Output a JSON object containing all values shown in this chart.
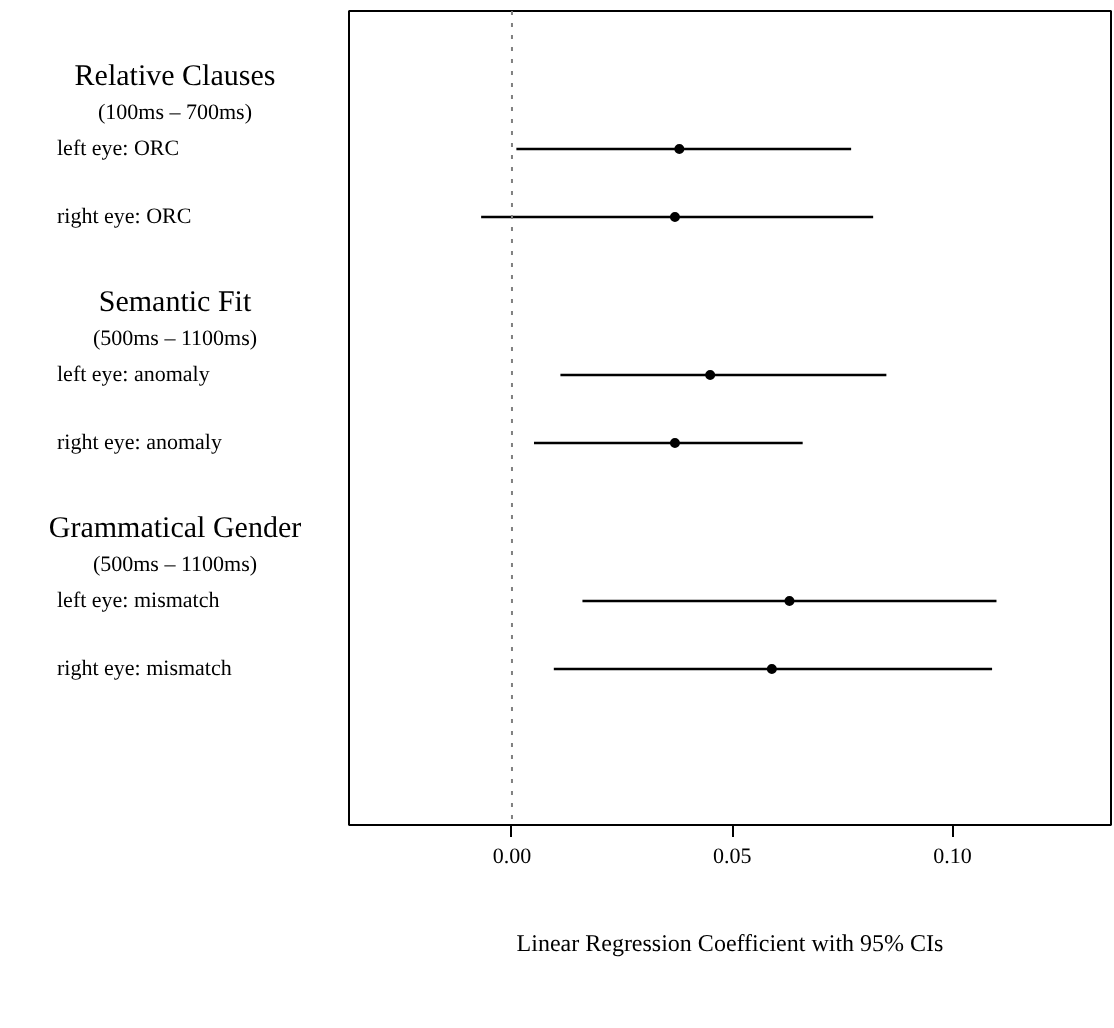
{
  "chart_data": {
    "type": "scatter",
    "orientation": "horizontal",
    "xlabel": "Linear Regression Coefficient with 95% CIs",
    "categories": [
      "left eye: ORC",
      "right eye: ORC",
      "left eye: anomaly",
      "right eye: anomaly",
      "left eye: mismatch",
      "right eye: mismatch"
    ],
    "values": [
      0.038,
      0.037,
      0.045,
      0.037,
      0.063,
      0.059
    ],
    "errors": [
      [
        0.001,
        0.077
      ],
      [
        -0.007,
        0.082
      ],
      [
        0.011,
        0.085
      ],
      [
        0.005,
        0.066
      ],
      [
        0.016,
        0.11
      ],
      [
        0.0095,
        0.109
      ]
    ],
    "color": "#000000",
    "marker": "circle",
    "xlim": [
      -0.037,
      0.136
    ],
    "xticks": [
      {
        "value": 0,
        "label": "0.00"
      },
      {
        "value": 0.05,
        "label": "0.05"
      },
      {
        "value": 0.1,
        "label": "0.10"
      }
    ],
    "ref_lines": [
      {
        "axis": "x",
        "value": 0,
        "color": "#808080",
        "line_style": "dotted"
      }
    ],
    "annotations": [
      "Relative Clauses\n(100ms – 700ms)",
      "Semantic Fit\n(500ms – 1100ms)",
      "Grammatical Gender\n(500ms – 1100ms)"
    ],
    "grid": false,
    "tick_labels": "x"
  }
}
